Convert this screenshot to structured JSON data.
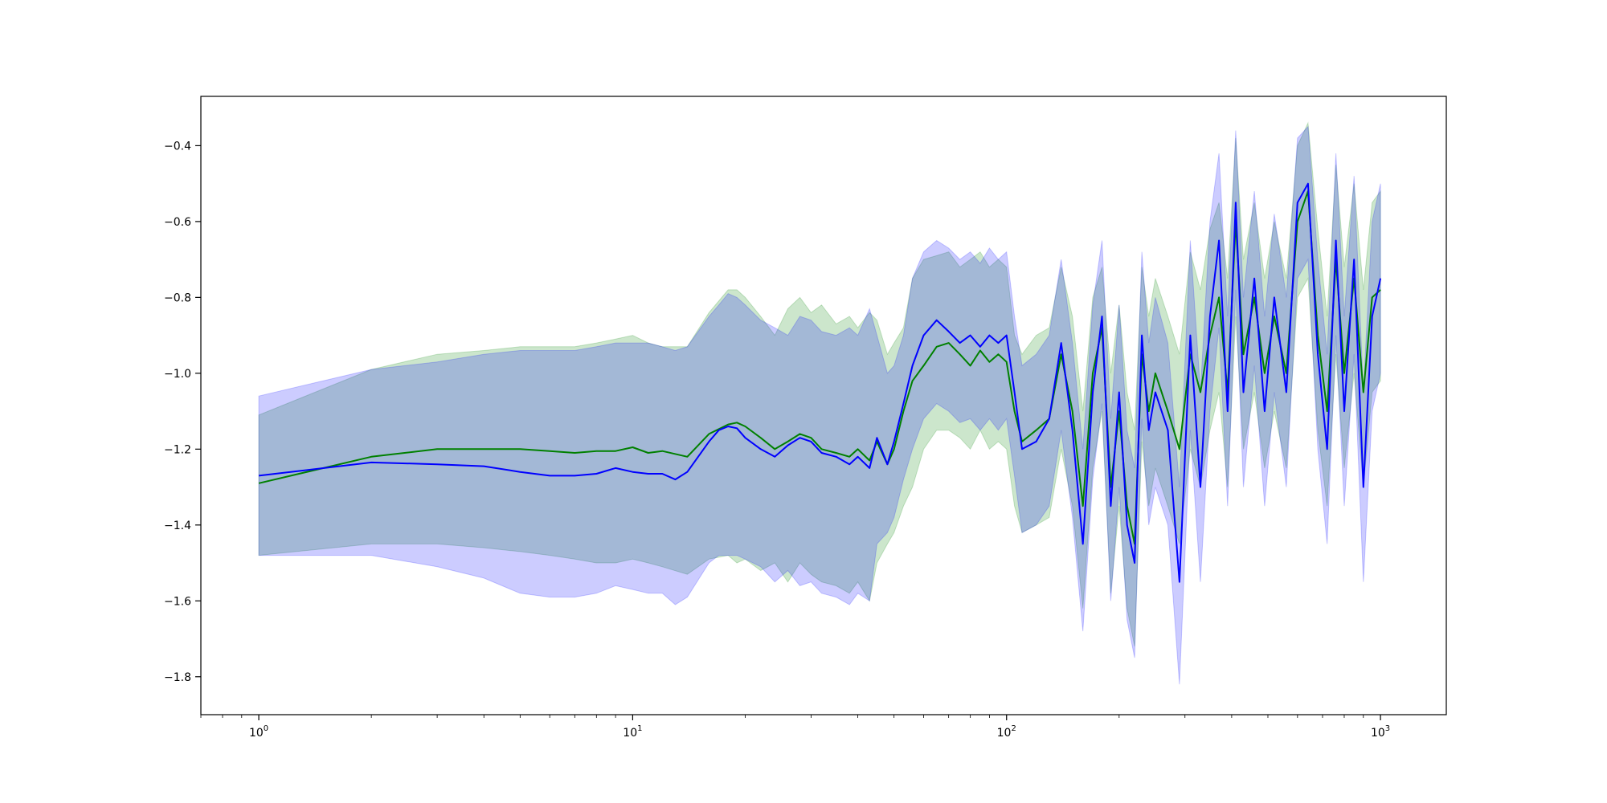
{
  "chart_data": {
    "type": "line",
    "title": "",
    "xlabel": "",
    "ylabel": "",
    "xscale": "log",
    "xlim": [
      0.7,
      1500
    ],
    "ylim": [
      -1.9,
      -0.27
    ],
    "grid": false,
    "legend": "none",
    "x_ticks": [
      {
        "value": 1,
        "base": "10",
        "exp": "0"
      },
      {
        "value": 10,
        "base": "10",
        "exp": "1"
      },
      {
        "value": 100,
        "base": "10",
        "exp": "2"
      },
      {
        "value": 1000,
        "base": "10",
        "exp": "3"
      }
    ],
    "y_ticks": [
      {
        "value": -0.4,
        "label": "−0.4"
      },
      {
        "value": -0.6,
        "label": "−0.6"
      },
      {
        "value": -0.8,
        "label": "−0.8"
      },
      {
        "value": -1.0,
        "label": "−1.0"
      },
      {
        "value": -1.2,
        "label": "−1.2"
      },
      {
        "value": -1.4,
        "label": "−1.4"
      },
      {
        "value": -1.6,
        "label": "−1.6"
      },
      {
        "value": -1.8,
        "label": "−1.8"
      }
    ],
    "series": [
      {
        "color": "#008000",
        "band_color": "#008000",
        "band_opacity": 0.2,
        "x": [
          1,
          2,
          3,
          4,
          5,
          6,
          7,
          8,
          9,
          10,
          11,
          12,
          14,
          16,
          18,
          19,
          20,
          22,
          24,
          26,
          28,
          30,
          32,
          35,
          38,
          40,
          43,
          45,
          48,
          50,
          53,
          56,
          60,
          65,
          70,
          75,
          80,
          85,
          90,
          95,
          100,
          105,
          110,
          120,
          130,
          140,
          150,
          160,
          170,
          180,
          190,
          200,
          210,
          220,
          230,
          240,
          250,
          270,
          290,
          310,
          330,
          350,
          370,
          390,
          410,
          430,
          460,
          490,
          520,
          560,
          600,
          640,
          680,
          720,
          760,
          800,
          850,
          900,
          950,
          1000
        ],
        "mean": [
          -1.29,
          -1.22,
          -1.2,
          -1.2,
          -1.2,
          -1.205,
          -1.21,
          -1.205,
          -1.205,
          -1.195,
          -1.21,
          -1.205,
          -1.22,
          -1.16,
          -1.135,
          -1.13,
          -1.14,
          -1.17,
          -1.2,
          -1.18,
          -1.16,
          -1.17,
          -1.2,
          -1.21,
          -1.22,
          -1.2,
          -1.23,
          -1.18,
          -1.24,
          -1.2,
          -1.1,
          -1.02,
          -0.98,
          -0.93,
          -0.92,
          -0.95,
          -0.98,
          -0.94,
          -0.97,
          -0.95,
          -0.97,
          -1.1,
          -1.18,
          -1.15,
          -1.12,
          -0.95,
          -1.1,
          -1.35,
          -1.0,
          -0.88,
          -1.3,
          -1.1,
          -1.35,
          -1.45,
          -0.95,
          -1.1,
          -1.0,
          -1.1,
          -1.2,
          -0.95,
          -1.05,
          -0.9,
          -0.8,
          -1.05,
          -0.6,
          -0.95,
          -0.8,
          -1.0,
          -0.85,
          -1.0,
          -0.6,
          -0.52,
          -0.9,
          -1.1,
          -0.7,
          -1.0,
          -0.75,
          -1.05,
          -0.8,
          -0.78
        ],
        "upper": [
          -1.11,
          -0.99,
          -0.95,
          -0.94,
          -0.93,
          -0.93,
          -0.93,
          -0.92,
          -0.91,
          -0.9,
          -0.92,
          -0.93,
          -0.93,
          -0.84,
          -0.78,
          -0.78,
          -0.8,
          -0.85,
          -0.9,
          -0.83,
          -0.8,
          -0.84,
          -0.82,
          -0.87,
          -0.85,
          -0.88,
          -0.84,
          -0.86,
          -0.95,
          -0.92,
          -0.88,
          -0.75,
          -0.7,
          -0.69,
          -0.68,
          -0.72,
          -0.7,
          -0.68,
          -0.72,
          -0.7,
          -0.72,
          -0.9,
          -0.95,
          -0.9,
          -0.88,
          -0.72,
          -0.85,
          -1.1,
          -0.8,
          -0.72,
          -1.0,
          -0.82,
          -1.05,
          -1.15,
          -0.72,
          -0.85,
          -0.75,
          -0.85,
          -0.95,
          -0.68,
          -0.78,
          -0.62,
          -0.55,
          -0.75,
          -0.38,
          -0.7,
          -0.55,
          -0.75,
          -0.6,
          -0.75,
          -0.4,
          -0.34,
          -0.62,
          -0.85,
          -0.45,
          -0.72,
          -0.5,
          -0.78,
          -0.55,
          -0.52
        ],
        "lower": [
          -1.48,
          -1.45,
          -1.45,
          -1.46,
          -1.47,
          -1.48,
          -1.49,
          -1.5,
          -1.5,
          -1.49,
          -1.5,
          -1.51,
          -1.53,
          -1.49,
          -1.48,
          -1.5,
          -1.49,
          -1.52,
          -1.5,
          -1.55,
          -1.5,
          -1.53,
          -1.55,
          -1.56,
          -1.58,
          -1.55,
          -1.6,
          -1.5,
          -1.45,
          -1.42,
          -1.35,
          -1.3,
          -1.2,
          -1.15,
          -1.15,
          -1.17,
          -1.2,
          -1.15,
          -1.2,
          -1.18,
          -1.2,
          -1.35,
          -1.42,
          -1.4,
          -1.38,
          -1.2,
          -1.35,
          -1.62,
          -1.25,
          -1.1,
          -1.58,
          -1.35,
          -1.62,
          -1.72,
          -1.18,
          -1.35,
          -1.25,
          -1.35,
          -1.45,
          -1.2,
          -1.3,
          -1.15,
          -1.05,
          -1.3,
          -0.85,
          -1.2,
          -1.05,
          -1.25,
          -1.1,
          -1.25,
          -0.8,
          -0.75,
          -1.15,
          -1.35,
          -0.95,
          -1.25,
          -1.0,
          -1.3,
          -1.05,
          -1.02
        ]
      },
      {
        "color": "#0000ff",
        "band_color": "#0000ff",
        "band_opacity": 0.2,
        "x": [
          1,
          2,
          3,
          4,
          5,
          6,
          7,
          8,
          9,
          10,
          11,
          12,
          13,
          14,
          16,
          17,
          18,
          19,
          20,
          22,
          24,
          26,
          28,
          30,
          32,
          35,
          38,
          40,
          43,
          45,
          48,
          50,
          53,
          56,
          60,
          65,
          70,
          75,
          80,
          85,
          90,
          95,
          100,
          105,
          110,
          120,
          130,
          140,
          150,
          160,
          170,
          180,
          190,
          200,
          210,
          220,
          230,
          240,
          250,
          270,
          290,
          310,
          330,
          350,
          370,
          390,
          410,
          430,
          460,
          490,
          520,
          560,
          600,
          640,
          680,
          720,
          760,
          800,
          850,
          900,
          950,
          1000
        ],
        "mean": [
          -1.27,
          -1.235,
          -1.24,
          -1.245,
          -1.26,
          -1.27,
          -1.27,
          -1.265,
          -1.25,
          -1.26,
          -1.265,
          -1.265,
          -1.28,
          -1.26,
          -1.18,
          -1.15,
          -1.14,
          -1.145,
          -1.17,
          -1.2,
          -1.22,
          -1.19,
          -1.17,
          -1.18,
          -1.21,
          -1.22,
          -1.24,
          -1.22,
          -1.25,
          -1.17,
          -1.24,
          -1.18,
          -1.08,
          -0.98,
          -0.9,
          -0.86,
          -0.89,
          -0.92,
          -0.9,
          -0.93,
          -0.9,
          -0.92,
          -0.9,
          -1.05,
          -1.2,
          -1.18,
          -1.12,
          -0.92,
          -1.15,
          -1.45,
          -1.05,
          -0.85,
          -1.35,
          -1.05,
          -1.4,
          -1.5,
          -0.9,
          -1.15,
          -1.05,
          -1.15,
          -1.55,
          -0.9,
          -1.3,
          -0.85,
          -0.65,
          -1.1,
          -0.55,
          -1.05,
          -0.75,
          -1.1,
          -0.8,
          -1.05,
          -0.55,
          -0.5,
          -0.95,
          -1.2,
          -0.65,
          -1.1,
          -0.7,
          -1.3,
          -0.85,
          -0.75
        ],
        "upper": [
          -1.06,
          -0.99,
          -0.97,
          -0.95,
          -0.94,
          -0.94,
          -0.94,
          -0.93,
          -0.92,
          -0.92,
          -0.92,
          -0.93,
          -0.94,
          -0.93,
          -0.85,
          -0.82,
          -0.79,
          -0.8,
          -0.82,
          -0.86,
          -0.88,
          -0.9,
          -0.85,
          -0.86,
          -0.89,
          -0.9,
          -0.88,
          -0.9,
          -0.83,
          -0.9,
          -1.0,
          -0.98,
          -0.9,
          -0.75,
          -0.68,
          -0.65,
          -0.67,
          -0.7,
          -0.68,
          -0.71,
          -0.67,
          -0.7,
          -0.68,
          -0.85,
          -0.98,
          -0.95,
          -0.9,
          -0.7,
          -0.92,
          -1.2,
          -0.82,
          -0.65,
          -1.12,
          -0.82,
          -1.15,
          -1.25,
          -0.68,
          -0.92,
          -0.8,
          -0.92,
          -1.3,
          -0.65,
          -1.05,
          -0.6,
          -0.42,
          -0.85,
          -0.36,
          -0.8,
          -0.52,
          -0.85,
          -0.58,
          -0.8,
          -0.38,
          -0.35,
          -0.7,
          -0.95,
          -0.42,
          -0.85,
          -0.48,
          -1.05,
          -0.6,
          -0.5
        ],
        "lower": [
          -1.48,
          -1.48,
          -1.51,
          -1.54,
          -1.58,
          -1.59,
          -1.59,
          -1.58,
          -1.56,
          -1.57,
          -1.58,
          -1.58,
          -1.61,
          -1.59,
          -1.5,
          -1.48,
          -1.48,
          -1.48,
          -1.49,
          -1.51,
          -1.55,
          -1.52,
          -1.56,
          -1.55,
          -1.58,
          -1.59,
          -1.61,
          -1.58,
          -1.6,
          -1.45,
          -1.42,
          -1.38,
          -1.28,
          -1.2,
          -1.12,
          -1.08,
          -1.1,
          -1.13,
          -1.12,
          -1.15,
          -1.12,
          -1.15,
          -1.12,
          -1.27,
          -1.42,
          -1.4,
          -1.35,
          -1.15,
          -1.38,
          -1.68,
          -1.28,
          -1.08,
          -1.6,
          -1.3,
          -1.65,
          -1.75,
          -1.12,
          -1.4,
          -1.3,
          -1.4,
          -1.82,
          -1.15,
          -1.55,
          -1.1,
          -0.88,
          -1.35,
          -0.78,
          -1.3,
          -0.98,
          -1.35,
          -1.05,
          -1.3,
          -0.75,
          -0.7,
          -1.2,
          -1.45,
          -0.9,
          -1.35,
          -0.95,
          -1.55,
          -1.1,
          -1.0
        ]
      }
    ]
  }
}
